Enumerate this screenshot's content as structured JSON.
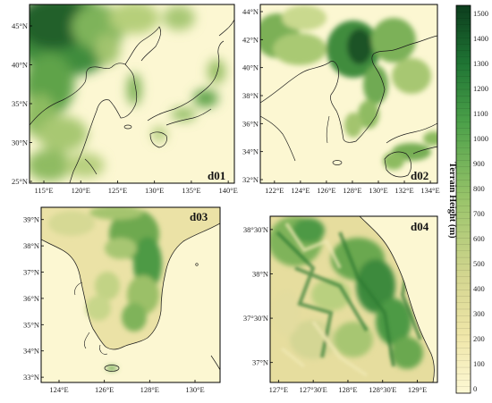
{
  "figure": {
    "panels": [
      {
        "id": "d01",
        "label": "d01",
        "lat_ticks": [
          "45°N",
          "40°N",
          "35°N",
          "30°N",
          "25°N"
        ],
        "lon_ticks": [
          "115°E",
          "120°E",
          "125°E",
          "130°E",
          "135°E",
          "140°E"
        ]
      },
      {
        "id": "d02",
        "label": "d02",
        "lat_ticks": [
          "44°N",
          "42°N",
          "40°N",
          "38°N",
          "36°N",
          "34°N",
          "32°N"
        ],
        "lon_ticks": [
          "122°E",
          "124°E",
          "126°E",
          "128°E",
          "130°E",
          "132°E",
          "134°E"
        ]
      },
      {
        "id": "d03",
        "label": "d03",
        "lat_ticks": [
          "39°N",
          "38°N",
          "37°N",
          "36°N",
          "35°N",
          "34°N",
          "33°N"
        ],
        "lon_ticks": [
          "124°E",
          "126°E",
          "128°E",
          "130°E"
        ]
      },
      {
        "id": "d04",
        "label": "d04",
        "lat_ticks": [
          "38°30'N",
          "38°N",
          "37°30'N",
          "37°N"
        ],
        "lon_ticks": [
          "127°E",
          "127°30'E",
          "128°E",
          "128°30'E",
          "129°E"
        ]
      }
    ],
    "colorbar": {
      "title": "Terrain Height (m)",
      "ticks": [
        "1500",
        "1400",
        "1300",
        "1200",
        "1100",
        "1000",
        "900",
        "800",
        "700",
        "600",
        "500",
        "400",
        "300",
        "200",
        "100",
        "0"
      ],
      "low_color": "#fdf8d4",
      "mid_color": "#c9d889",
      "high_color": "#0c3d1d"
    },
    "colors": {
      "sea": "#fcf7d2",
      "coast": "#1a1a1a",
      "border": "#000000"
    }
  }
}
